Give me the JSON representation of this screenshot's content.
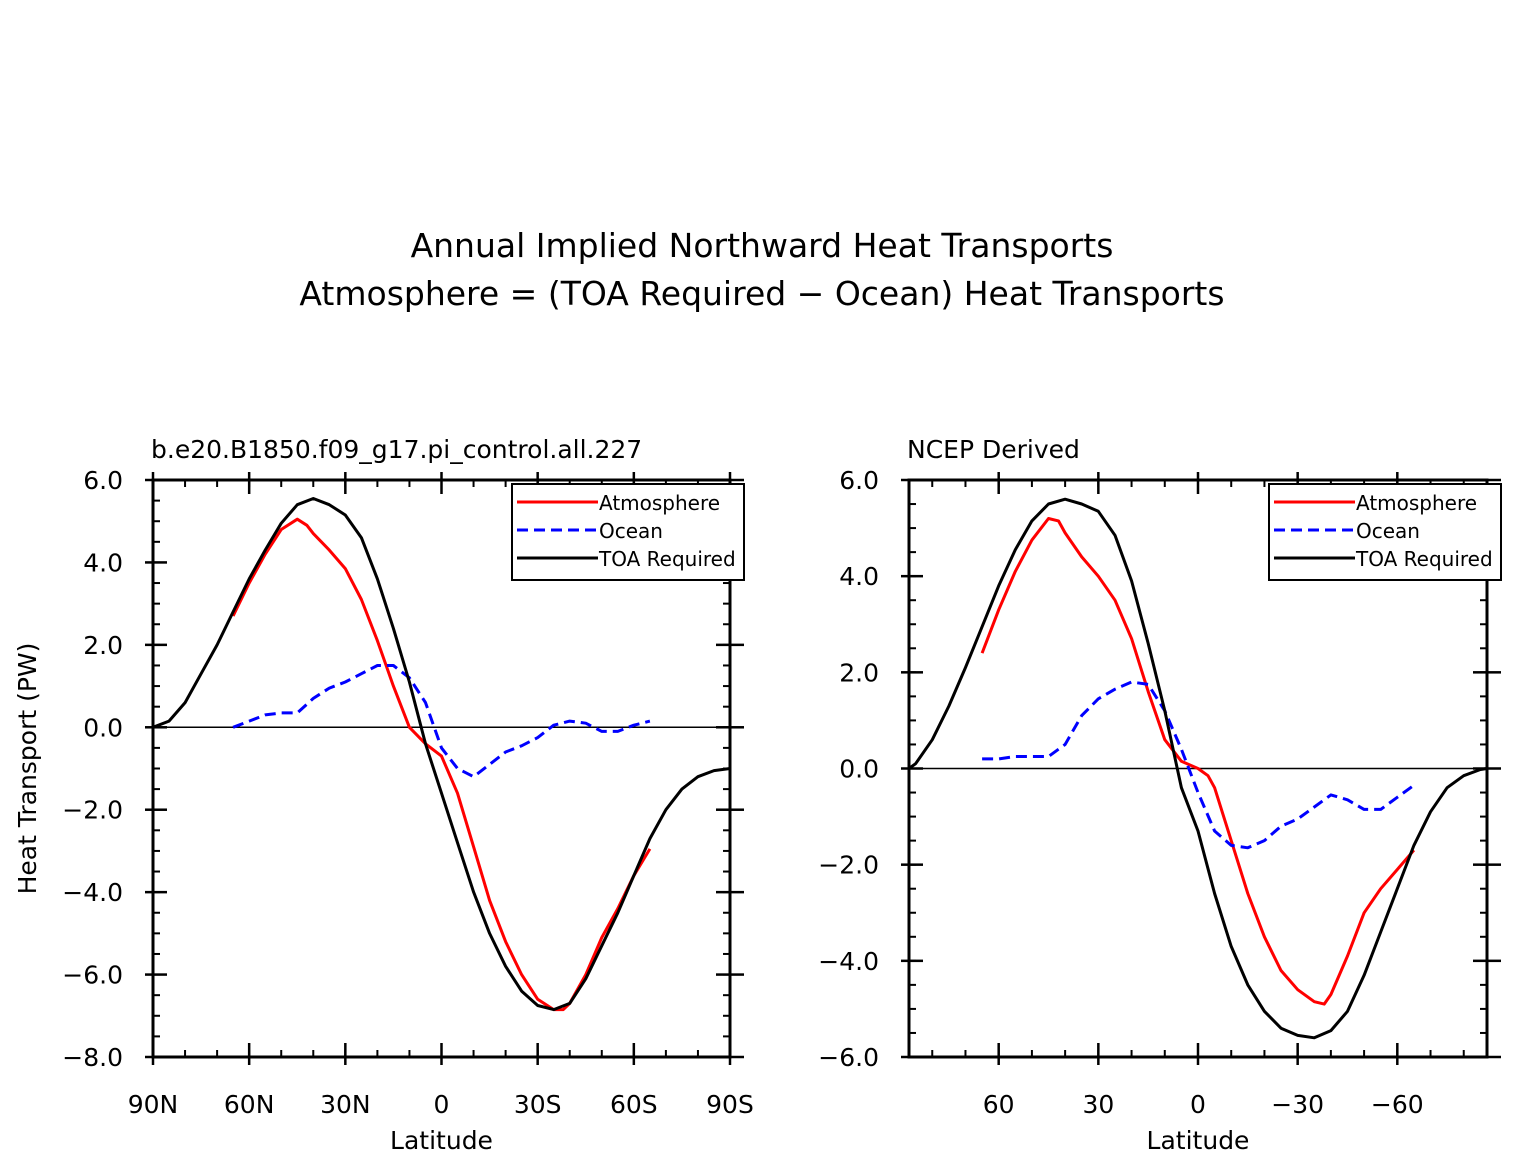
{
  "title": {
    "line1": "Annual Implied Northward Heat Transports",
    "line2": "Atmosphere = (TOA Required − Ocean) Heat Transports"
  },
  "colors": {
    "atmosphere": "#ff0000",
    "ocean": "#0000ff",
    "toa": "#000000"
  },
  "chart_data": [
    {
      "type": "line",
      "title": "b.e20.B1850.f09_g17.pi_control.all.227",
      "xlabel": "Latitude",
      "ylabel": "Heat Transport (PW)",
      "xlim": [
        90,
        -90
      ],
      "ylim": [
        -8,
        6
      ],
      "xticks": [
        90,
        60,
        30,
        0,
        -30,
        -60,
        -90
      ],
      "xtick_labels": [
        "90N",
        "60N",
        "30N",
        "0",
        "30S",
        "60S",
        "90S"
      ],
      "yticks": [
        -8,
        -6,
        -4,
        -2,
        0,
        2,
        4,
        6
      ],
      "ytick_labels": [
        "−8.0",
        "−6.0",
        "−4.0",
        "−2.0",
        "0.0",
        "2.0",
        "4.0",
        "6.0"
      ],
      "legend": {
        "placement": "top-right",
        "labels": [
          "Atmosphere",
          "Ocean",
          "TOA Required"
        ]
      },
      "series": [
        {
          "name": "Atmosphere",
          "x": [
            65,
            60,
            55,
            50,
            45,
            42,
            40,
            35,
            30,
            25,
            20,
            15,
            10,
            5,
            0,
            -5,
            -10,
            -15,
            -20,
            -25,
            -30,
            -35,
            -38,
            -40,
            -45,
            -50,
            -55,
            -60,
            -65
          ],
          "y": [
            2.7,
            3.5,
            4.2,
            4.8,
            5.05,
            4.9,
            4.7,
            4.3,
            3.85,
            3.1,
            2.1,
            1.0,
            0.0,
            -0.4,
            -0.7,
            -1.6,
            -2.9,
            -4.2,
            -5.2,
            -6.0,
            -6.6,
            -6.85,
            -6.85,
            -6.7,
            -6.0,
            -5.1,
            -4.4,
            -3.6,
            -2.95
          ]
        },
        {
          "name": "Ocean",
          "x": [
            65,
            60,
            55,
            50,
            45,
            40,
            35,
            30,
            25,
            20,
            15,
            10,
            5,
            0,
            -5,
            -10,
            -15,
            -20,
            -25,
            -30,
            -35,
            -40,
            -45,
            -50,
            -55,
            -60,
            -65
          ],
          "y": [
            0.0,
            0.15,
            0.3,
            0.35,
            0.35,
            0.7,
            0.95,
            1.1,
            1.3,
            1.5,
            1.5,
            1.2,
            0.6,
            -0.5,
            -1.0,
            -1.2,
            -0.9,
            -0.6,
            -0.45,
            -0.25,
            0.05,
            0.15,
            0.1,
            -0.1,
            -0.1,
            0.05,
            0.15
          ]
        },
        {
          "name": "TOA Required",
          "x": [
            90,
            85,
            80,
            75,
            70,
            65,
            60,
            55,
            50,
            45,
            40,
            35,
            30,
            25,
            20,
            15,
            10,
            5,
            0,
            -5,
            -10,
            -15,
            -20,
            -25,
            -30,
            -35,
            -40,
            -45,
            -50,
            -55,
            -60,
            -65,
            -70,
            -75,
            -80,
            -85,
            -90
          ],
          "y": [
            0.0,
            0.15,
            0.6,
            1.3,
            2.0,
            2.8,
            3.6,
            4.3,
            4.95,
            5.4,
            5.55,
            5.4,
            5.15,
            4.6,
            3.6,
            2.4,
            1.1,
            -0.4,
            -1.6,
            -2.8,
            -4.0,
            -5.0,
            -5.8,
            -6.4,
            -6.75,
            -6.85,
            -6.7,
            -6.1,
            -5.3,
            -4.5,
            -3.6,
            -2.7,
            -2.0,
            -1.5,
            -1.2,
            -1.05,
            -1.0
          ]
        }
      ]
    },
    {
      "type": "line",
      "title": "NCEP Derived",
      "xlabel": "Latitude",
      "ylabel": "",
      "xlim": [
        87,
        -87
      ],
      "ylim": [
        -6,
        6
      ],
      "xticks": [
        60,
        30,
        0,
        -30,
        -60
      ],
      "xtick_labels": [
        "60",
        "30",
        "0",
        "−30",
        "−60"
      ],
      "yticks": [
        -6,
        -4,
        -2,
        0,
        2,
        4,
        6
      ],
      "ytick_labels": [
        "−6.0",
        "−4.0",
        "−2.0",
        "0.0",
        "2.0",
        "4.0",
        "6.0"
      ],
      "legend": {
        "placement": "top-right",
        "labels": [
          "Atmosphere",
          "Ocean",
          "TOA Required"
        ]
      },
      "series": [
        {
          "name": "Atmosphere",
          "x": [
            65,
            60,
            55,
            50,
            45,
            42,
            40,
            35,
            30,
            25,
            20,
            15,
            10,
            5,
            0,
            -3,
            -5,
            -10,
            -15,
            -20,
            -25,
            -30,
            -35,
            -38,
            -40,
            -45,
            -50,
            -55,
            -60,
            -65
          ],
          "y": [
            2.4,
            3.3,
            4.1,
            4.75,
            5.2,
            5.15,
            4.9,
            4.4,
            4.0,
            3.5,
            2.7,
            1.6,
            0.6,
            0.15,
            0.0,
            -0.15,
            -0.4,
            -1.5,
            -2.6,
            -3.5,
            -4.2,
            -4.6,
            -4.85,
            -4.9,
            -4.7,
            -3.9,
            -3.0,
            -2.5,
            -2.1,
            -1.7
          ]
        },
        {
          "name": "Ocean",
          "x": [
            65,
            60,
            55,
            50,
            45,
            40,
            35,
            30,
            25,
            20,
            15,
            10,
            5,
            0,
            -5,
            -10,
            -15,
            -20,
            -25,
            -30,
            -35,
            -40,
            -45,
            -50,
            -55,
            -60,
            -65
          ],
          "y": [
            0.2,
            0.2,
            0.25,
            0.25,
            0.25,
            0.5,
            1.1,
            1.45,
            1.65,
            1.8,
            1.75,
            1.2,
            0.4,
            -0.5,
            -1.3,
            -1.6,
            -1.65,
            -1.5,
            -1.2,
            -1.05,
            -0.8,
            -0.55,
            -0.65,
            -0.85,
            -0.85,
            -0.6,
            -0.35
          ]
        },
        {
          "name": "TOA Required",
          "x": [
            87,
            85,
            80,
            75,
            70,
            65,
            60,
            55,
            50,
            45,
            40,
            35,
            30,
            25,
            20,
            15,
            10,
            5,
            0,
            -5,
            -10,
            -15,
            -20,
            -25,
            -30,
            -35,
            -40,
            -45,
            -50,
            -55,
            -60,
            -65,
            -70,
            -75,
            -80,
            -85,
            -87
          ],
          "y": [
            0.0,
            0.1,
            0.6,
            1.3,
            2.1,
            2.95,
            3.8,
            4.55,
            5.15,
            5.5,
            5.6,
            5.5,
            5.35,
            4.85,
            3.9,
            2.6,
            1.2,
            -0.4,
            -1.3,
            -2.6,
            -3.7,
            -4.5,
            -5.05,
            -5.4,
            -5.55,
            -5.6,
            -5.45,
            -5.05,
            -4.3,
            -3.4,
            -2.5,
            -1.6,
            -0.9,
            -0.4,
            -0.15,
            -0.02,
            0.0
          ]
        }
      ]
    }
  ]
}
